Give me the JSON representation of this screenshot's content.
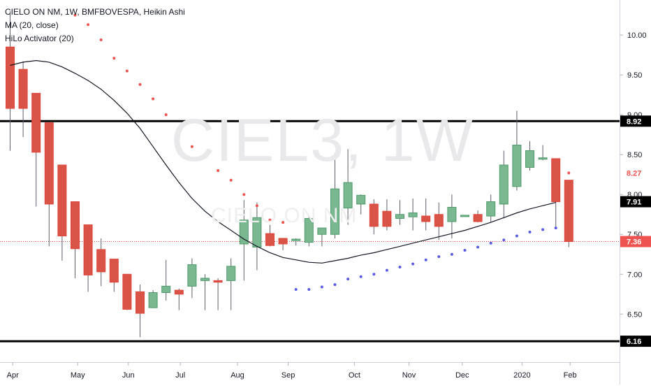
{
  "legend": {
    "symbol": "CIELO ON NM, 1W, BMFBOVESPA, Heikin Ashi",
    "ma": "MA (20, close)",
    "hilo": "HiLo Activator (20)"
  },
  "watermark": {
    "ticker": "CIEL3, 1W",
    "name": "CIELO ON NM"
  },
  "colors": {
    "up": "#4f9a6b",
    "up_fill": "#7ab891",
    "down": "#e0463b",
    "down_fill": "#d95346",
    "hilo_red": "#ef5350",
    "hilo_blue": "#5b5ce6",
    "ma": "#131722",
    "level": "#000000",
    "price_line": "#e0463b"
  },
  "chart_data": {
    "type": "candlestick",
    "style": "Heikin Ashi",
    "interval": "1W",
    "ylim": [
      6.13,
      10.4
    ],
    "y_ticks": [
      10.0,
      9.5,
      9.0,
      8.5,
      8.0,
      7.5,
      7.0,
      6.5
    ],
    "y_tick_labels": [
      "10.00",
      "9.50",
      "9.00",
      "8.50",
      "8.00",
      "7.50",
      "7.00",
      "6.50"
    ],
    "x_tick_labels": [
      {
        "label": "Apr",
        "index": 0.2
      },
      {
        "label": "May",
        "index": 5.2
      },
      {
        "label": "Jun",
        "index": 9.1
      },
      {
        "label": "Jul",
        "index": 13.1
      },
      {
        "label": "Aug",
        "index": 17.5
      },
      {
        "label": "Sep",
        "index": 21.4
      },
      {
        "label": "Oct",
        "index": 26.5
      },
      {
        "label": "Nov",
        "index": 30.7
      },
      {
        "label": "Dec",
        "index": 34.8
      },
      {
        "label": "2020",
        "index": 39.4
      },
      {
        "label": "Feb",
        "index": 43.1
      }
    ],
    "candles": [
      {
        "o": 9.85,
        "h": 10.3,
        "l": 8.55,
        "c": 9.08
      },
      {
        "o": 9.57,
        "h": 9.67,
        "l": 8.72,
        "c": 9.08
      },
      {
        "o": 9.27,
        "h": 9.27,
        "l": 7.85,
        "c": 8.53
      },
      {
        "o": 8.9,
        "h": 8.9,
        "l": 7.35,
        "c": 7.88
      },
      {
        "o": 8.37,
        "h": 8.37,
        "l": 7.17,
        "c": 7.48
      },
      {
        "o": 7.91,
        "h": 7.91,
        "l": 6.95,
        "c": 7.32
      },
      {
        "o": 7.62,
        "h": 7.62,
        "l": 6.78,
        "c": 6.99
      },
      {
        "o": 7.31,
        "h": 7.45,
        "l": 6.85,
        "c": 7.03
      },
      {
        "o": 7.19,
        "h": 7.19,
        "l": 6.78,
        "c": 6.9
      },
      {
        "o": 7.0,
        "h": 7.0,
        "l": 6.55,
        "c": 6.56
      },
      {
        "o": 6.78,
        "h": 6.87,
        "l": 6.21,
        "c": 6.51
      },
      {
        "o": 6.58,
        "h": 6.8,
        "l": 6.62,
        "c": 6.77
      },
      {
        "o": 6.77,
        "h": 7.18,
        "l": 6.67,
        "c": 6.85
      },
      {
        "o": 6.8,
        "h": 6.82,
        "l": 6.55,
        "c": 6.75
      },
      {
        "o": 6.85,
        "h": 7.2,
        "l": 6.7,
        "c": 7.12
      },
      {
        "o": 6.92,
        "h": 7.0,
        "l": 6.55,
        "c": 6.95
      },
      {
        "o": 6.92,
        "h": 6.95,
        "l": 6.55,
        "c": 6.9
      },
      {
        "o": 6.92,
        "h": 7.2,
        "l": 6.55,
        "c": 7.1
      },
      {
        "o": 7.38,
        "h": 7.93,
        "l": 6.92,
        "c": 7.68
      },
      {
        "o": 7.34,
        "h": 7.9,
        "l": 7.05,
        "c": 7.71
      },
      {
        "o": 7.51,
        "h": 7.62,
        "l": 7.35,
        "c": 7.36
      },
      {
        "o": 7.45,
        "h": 7.45,
        "l": 7.3,
        "c": 7.38
      },
      {
        "o": 7.43,
        "h": 7.45,
        "l": 7.36,
        "c": 7.44
      },
      {
        "o": 7.4,
        "h": 7.74,
        "l": 7.35,
        "c": 7.7
      },
      {
        "o": 7.5,
        "h": 7.55,
        "l": 7.35,
        "c": 7.58
      },
      {
        "o": 7.5,
        "h": 8.52,
        "l": 7.45,
        "c": 8.07
      },
      {
        "o": 7.83,
        "h": 8.57,
        "l": 7.62,
        "c": 8.15
      },
      {
        "o": 7.88,
        "h": 8.0,
        "l": 7.75,
        "c": 7.99
      },
      {
        "o": 7.88,
        "h": 7.94,
        "l": 7.5,
        "c": 7.6
      },
      {
        "o": 7.79,
        "h": 7.94,
        "l": 7.55,
        "c": 7.6
      },
      {
        "o": 7.7,
        "h": 7.93,
        "l": 7.62,
        "c": 7.75
      },
      {
        "o": 7.72,
        "h": 7.95,
        "l": 7.55,
        "c": 7.77
      },
      {
        "o": 7.73,
        "h": 7.95,
        "l": 7.55,
        "c": 7.66
      },
      {
        "o": 7.75,
        "h": 7.9,
        "l": 7.43,
        "c": 7.6
      },
      {
        "o": 7.66,
        "h": 8.0,
        "l": 7.45,
        "c": 7.84
      },
      {
        "o": 7.74,
        "h": 7.74,
        "l": 7.72,
        "c": 7.74
      },
      {
        "o": 7.75,
        "h": 7.8,
        "l": 7.65,
        "c": 7.66
      },
      {
        "o": 7.73,
        "h": 8.0,
        "l": 7.65,
        "c": 7.91
      },
      {
        "o": 7.88,
        "h": 8.55,
        "l": 7.7,
        "c": 8.37
      },
      {
        "o": 8.1,
        "h": 9.05,
        "l": 8.05,
        "c": 8.62
      },
      {
        "o": 8.34,
        "h": 8.67,
        "l": 8.3,
        "c": 8.55
      },
      {
        "o": 8.45,
        "h": 8.62,
        "l": 8.43,
        "c": 8.46
      },
      {
        "o": 8.45,
        "h": 8.45,
        "l": 7.57,
        "c": 7.91
      },
      {
        "o": 8.18,
        "h": 8.18,
        "l": 7.34,
        "c": 7.41
      }
    ],
    "ma_20_close": [
      9.62,
      9.66,
      9.68,
      9.66,
      9.6,
      9.52,
      9.43,
      9.32,
      9.18,
      9.02,
      8.83,
      8.6,
      8.37,
      8.15,
      7.95,
      7.79,
      7.66,
      7.55,
      7.44,
      7.35,
      7.27,
      7.21,
      7.18,
      7.15,
      7.14,
      7.17,
      7.2,
      7.24,
      7.27,
      7.31,
      7.35,
      7.39,
      7.43,
      7.47,
      7.51,
      7.55,
      7.6,
      7.65,
      7.71,
      7.77,
      7.82,
      7.86,
      7.9
    ],
    "hilo_activator": [
      {
        "i": 5,
        "v": 10.25,
        "side": "resistance"
      },
      {
        "i": 6,
        "v": 10.13,
        "side": "resistance"
      },
      {
        "i": 7,
        "v": 9.94,
        "side": "resistance"
      },
      {
        "i": 8,
        "v": 9.71,
        "side": "resistance"
      },
      {
        "i": 9,
        "v": 9.55,
        "side": "resistance"
      },
      {
        "i": 10,
        "v": 9.38,
        "side": "resistance"
      },
      {
        "i": 11,
        "v": 9.2,
        "side": "resistance"
      },
      {
        "i": 12,
        "v": 9.0,
        "side": "resistance"
      },
      {
        "i": 13,
        "v": 8.8,
        "side": "resistance"
      },
      {
        "i": 14,
        "v": 8.6,
        "side": "resistance"
      },
      {
        "i": 15,
        "v": 8.47,
        "side": "resistance"
      },
      {
        "i": 16,
        "v": 8.3,
        "side": "resistance"
      },
      {
        "i": 17,
        "v": 8.18,
        "side": "resistance"
      },
      {
        "i": 18,
        "v": 8.0,
        "side": "resistance"
      },
      {
        "i": 19,
        "v": 7.86,
        "side": "resistance"
      },
      {
        "i": 20,
        "v": 7.68,
        "side": "resistance"
      },
      {
        "i": 21,
        "v": 7.65,
        "side": "resistance"
      },
      {
        "i": 22,
        "v": 6.81,
        "side": "support"
      },
      {
        "i": 23,
        "v": 6.81,
        "side": "support"
      },
      {
        "i": 24,
        "v": 6.84,
        "side": "support"
      },
      {
        "i": 25,
        "v": 6.87,
        "side": "support"
      },
      {
        "i": 26,
        "v": 6.94,
        "side": "support"
      },
      {
        "i": 27,
        "v": 6.97,
        "side": "support"
      },
      {
        "i": 28,
        "v": 7.0,
        "side": "support"
      },
      {
        "i": 29,
        "v": 7.05,
        "side": "support"
      },
      {
        "i": 30,
        "v": 7.09,
        "side": "support"
      },
      {
        "i": 31,
        "v": 7.13,
        "side": "support"
      },
      {
        "i": 32,
        "v": 7.18,
        "side": "support"
      },
      {
        "i": 33,
        "v": 7.22,
        "side": "support"
      },
      {
        "i": 34,
        "v": 7.25,
        "side": "support"
      },
      {
        "i": 35,
        "v": 7.3,
        "side": "support"
      },
      {
        "i": 36,
        "v": 7.34,
        "side": "support"
      },
      {
        "i": 37,
        "v": 7.39,
        "side": "support"
      },
      {
        "i": 38,
        "v": 7.43,
        "side": "support"
      },
      {
        "i": 39,
        "v": 7.48,
        "side": "support"
      },
      {
        "i": 40,
        "v": 7.53,
        "side": "support"
      },
      {
        "i": 41,
        "v": 7.56,
        "side": "support"
      },
      {
        "i": 42,
        "v": 7.58,
        "side": "support"
      },
      {
        "i": 43,
        "v": 8.27,
        "side": "resistance"
      }
    ],
    "levels": [
      {
        "value": 8.92,
        "label": "8.92"
      },
      {
        "value": 6.16,
        "label": "6.16"
      }
    ],
    "last_price": {
      "value": 7.41,
      "label": "7.36"
    },
    "ma_value": {
      "value": 7.91,
      "label": "7.91"
    },
    "hilo_value": {
      "value": 8.27,
      "label": "8.27"
    }
  }
}
